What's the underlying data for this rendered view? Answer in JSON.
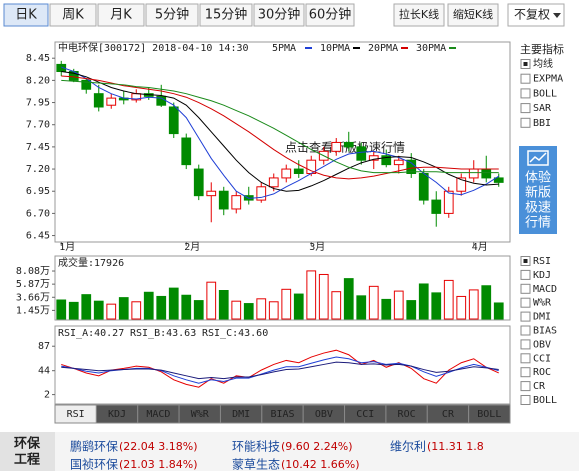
{
  "toolbar": {
    "periods": [
      "日K",
      "周K",
      "月K",
      "5分钟",
      "15分钟",
      "30分钟",
      "60分钟"
    ],
    "active": 0,
    "actions": [
      "拉长K线",
      "缩短K线"
    ],
    "adjust": "不复权"
  },
  "watermark": "点击查看新版极速行情",
  "chart_data": [
    {
      "type": "candlestick",
      "title": "中电环保[300172] 2018-04-10 14:30",
      "categories": [
        "1月",
        null,
        null,
        null,
        null,
        null,
        null,
        null,
        null,
        null,
        "2月",
        null,
        null,
        null,
        null,
        null,
        null,
        null,
        null,
        null,
        "3月",
        null,
        null,
        null,
        null,
        null,
        null,
        null,
        null,
        null,
        null,
        null,
        null,
        "4月",
        null,
        null
      ],
      "open": [
        8.38,
        8.3,
        8.2,
        8.05,
        7.92,
        8.0,
        7.98,
        8.05,
        8.02,
        7.9,
        7.55,
        7.2,
        6.9,
        6.95,
        6.75,
        6.9,
        6.85,
        7.0,
        7.1,
        7.2,
        7.15,
        7.3,
        7.4,
        7.5,
        7.45,
        7.3,
        7.35,
        7.25,
        7.3,
        7.15,
        6.85,
        6.7,
        6.95,
        7.1,
        7.2,
        7.1
      ],
      "high": [
        8.42,
        8.33,
        8.22,
        8.15,
        8.05,
        8.08,
        8.1,
        8.12,
        8.15,
        7.95,
        7.6,
        7.25,
        7.05,
        7.0,
        6.95,
        7.0,
        7.05,
        7.15,
        7.25,
        7.3,
        7.35,
        7.45,
        7.55,
        7.62,
        7.5,
        7.4,
        7.42,
        7.35,
        7.38,
        7.2,
        6.95,
        7.0,
        7.15,
        7.3,
        7.35,
        7.15
      ],
      "low": [
        8.25,
        8.18,
        8.05,
        7.85,
        7.88,
        7.93,
        7.95,
        7.98,
        7.9,
        7.55,
        7.2,
        6.85,
        6.6,
        6.68,
        6.7,
        6.8,
        6.82,
        6.95,
        7.05,
        7.1,
        7.12,
        7.25,
        7.35,
        7.4,
        7.25,
        7.2,
        7.22,
        7.15,
        7.1,
        6.8,
        6.55,
        6.65,
        6.9,
        7.05,
        7.05,
        7.0
      ],
      "close": [
        8.3,
        8.2,
        8.1,
        7.9,
        8.0,
        7.98,
        8.05,
        8.02,
        7.92,
        7.6,
        7.25,
        6.9,
        6.95,
        6.75,
        6.9,
        6.85,
        7.0,
        7.1,
        7.2,
        7.15,
        7.3,
        7.4,
        7.5,
        7.45,
        7.3,
        7.35,
        7.25,
        7.3,
        7.15,
        6.85,
        6.7,
        6.95,
        7.1,
        7.2,
        7.1,
        7.05
      ],
      "up_color": "#e60000",
      "down_color": "#008a00",
      "series": [
        {
          "name": "5PMA",
          "color": "#1f3fd6",
          "values": [
            8.35,
            8.3,
            8.22,
            8.12,
            8.05,
            8.0,
            7.99,
            8.01,
            8.0,
            7.92,
            7.78,
            7.55,
            7.32,
            7.13,
            6.95,
            6.87,
            6.88,
            6.92,
            7.0,
            7.07,
            7.15,
            7.23,
            7.31,
            7.37,
            7.39,
            7.4,
            7.37,
            7.33,
            7.27,
            7.15,
            7.05,
            6.93,
            6.91,
            6.96,
            7.03,
            7.12
          ]
        },
        {
          "name": "10PMA",
          "color": "#000000",
          "values": [
            8.3,
            8.28,
            8.24,
            8.18,
            8.12,
            8.08,
            8.05,
            8.04,
            8.03,
            8.0,
            7.92,
            7.78,
            7.62,
            7.46,
            7.3,
            7.16,
            7.05,
            6.98,
            6.95,
            6.96,
            7.01,
            7.07,
            7.14,
            7.21,
            7.27,
            7.31,
            7.33,
            7.34,
            7.33,
            7.28,
            7.22,
            7.14,
            7.08,
            7.04,
            7.02,
            7.03
          ]
        },
        {
          "name": "20PMA",
          "color": "#d40000",
          "values": [
            8.25,
            8.24,
            8.22,
            8.2,
            8.17,
            8.14,
            8.12,
            8.1,
            8.08,
            8.05,
            8.01,
            7.95,
            7.88,
            7.8,
            7.71,
            7.62,
            7.52,
            7.42,
            7.33,
            7.25,
            7.18,
            7.13,
            7.1,
            7.09,
            7.1,
            7.12,
            7.15,
            7.18,
            7.21,
            7.22,
            7.22,
            7.21,
            7.2,
            7.2,
            7.2,
            7.2
          ]
        },
        {
          "name": "30PMA",
          "color": "#1a8a1a",
          "values": [
            8.2,
            8.19,
            8.18,
            8.17,
            8.16,
            8.15,
            8.13,
            8.12,
            8.1,
            8.08,
            8.05,
            8.01,
            7.97,
            7.92,
            7.86,
            7.8,
            7.73,
            7.66,
            7.58,
            7.5,
            7.42,
            7.35,
            7.28,
            7.22,
            7.18,
            7.16,
            7.16,
            7.16,
            7.17,
            7.17,
            7.17,
            7.16,
            7.16,
            7.16,
            7.16,
            7.16
          ]
        }
      ],
      "ylim": [
        6.4,
        8.52
      ],
      "yticks": [
        6.45,
        {
          "value": 6.7,
          "label": "6.70"
        },
        6.95,
        {
          "value": 7.2,
          "label": "7.20"
        },
        7.45,
        {
          "value": 7.7,
          "label": "7.70"
        },
        7.95,
        {
          "value": 8.2,
          "label": "8.20"
        },
        8.45
      ]
    },
    {
      "type": "bar",
      "title": "成交量:17926",
      "values": [
        3.2,
        2.8,
        4.1,
        3.0,
        2.5,
        3.6,
        2.9,
        4.5,
        3.8,
        5.2,
        4.0,
        3.1,
        6.2,
        4.8,
        3.0,
        2.6,
        3.4,
        2.9,
        5.0,
        4.2,
        8.1,
        7.5,
        4.6,
        6.8,
        3.9,
        5.5,
        3.3,
        4.7,
        3.1,
        5.9,
        4.4,
        6.5,
        3.8,
        4.9,
        5.6,
        2.7
      ],
      "ylim": [
        0,
        9.6
      ],
      "yticks": [
        {
          "value": 1.45,
          "label": "1.45万"
        },
        {
          "value": 3.66,
          "label": "3.66万"
        },
        {
          "value": 5.87,
          "label": "5.87万"
        },
        {
          "value": 8.08,
          "label": "8.08万"
        }
      ]
    },
    {
      "type": "line",
      "series": [
        {
          "name": "RSI_A:40.27",
          "color": "#e60000",
          "values": [
            55,
            48,
            40,
            35,
            45,
            48,
            52,
            50,
            42,
            28,
            20,
            15,
            30,
            22,
            35,
            32,
            45,
            55,
            62,
            58,
            68,
            75,
            80,
            72,
            55,
            62,
            50,
            58,
            48,
            30,
            22,
            45,
            58,
            65,
            50,
            40
          ]
        },
        {
          "name": "RSI_B:43.63",
          "color": "#1f3fd6",
          "values": [
            52,
            48,
            43,
            40,
            44,
            46,
            48,
            48,
            44,
            35,
            28,
            22,
            28,
            25,
            31,
            31,
            38,
            45,
            51,
            51,
            57,
            63,
            68,
            65,
            58,
            60,
            55,
            57,
            52,
            42,
            34,
            41,
            49,
            55,
            50,
            44
          ]
        },
        {
          "name": "RSI_C:43.60",
          "color": "#1a1a7a",
          "values": [
            50,
            48,
            46,
            44,
            45,
            46,
            47,
            47,
            45,
            40,
            35,
            30,
            32,
            30,
            33,
            33,
            37,
            42,
            46,
            47,
            51,
            55,
            59,
            58,
            55,
            56,
            54,
            55,
            52,
            46,
            41,
            43,
            47,
            51,
            49,
            46
          ]
        }
      ],
      "ylim": [
        -11,
        119
      ],
      "yticks": [
        2,
        44,
        87
      ]
    }
  ],
  "indicator_panel": {
    "title": "主要指标",
    "options": [
      "均线",
      "EXPMA",
      "BOLL",
      "SAR",
      "BBI"
    ],
    "checked": 0
  },
  "promo": [
    "体验",
    "新版",
    "极速",
    "行情"
  ],
  "sub_indicators": {
    "options": [
      "RSI",
      "KDJ",
      "MACD",
      "W%R",
      "DMI",
      "BIAS",
      "OBV",
      "CCI",
      "ROC",
      "CR",
      "BOLL"
    ],
    "checked": 0
  },
  "tabs": {
    "items": [
      "RSI",
      "KDJ",
      "MACD",
      "W%R",
      "DMI",
      "BIAS",
      "OBV",
      "CCI",
      "ROC",
      "CR",
      "BOLL"
    ],
    "active": 0
  },
  "sector": {
    "label": [
      "环保",
      "工程"
    ],
    "stocks": [
      {
        "name": "鹏鹞环保",
        "detail": "(22.04 3.18%)"
      },
      {
        "name": "环能科技",
        "detail": "(9.60 2.24%)"
      },
      {
        "name": "维尔利",
        "detail": "(11.31 1.8"
      },
      {
        "name": "国祯环保",
        "detail": "(21.03 1.84%)"
      },
      {
        "name": "蒙草生态",
        "detail": "(10.42 1.66%)"
      }
    ]
  }
}
